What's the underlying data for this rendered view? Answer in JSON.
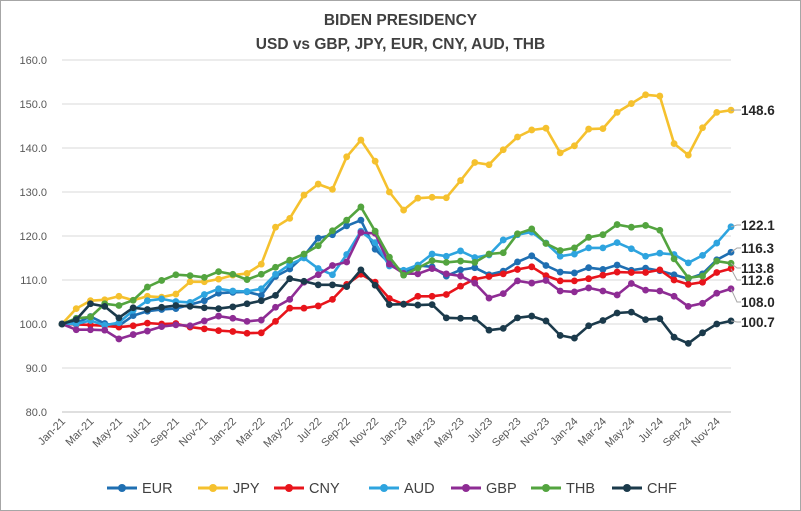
{
  "chart_data": {
    "type": "line",
    "title": "BIDEN PRESIDENCY",
    "subtitle": "USD vs GBP, JPY, EUR, CNY, AUD, THB",
    "ylim": [
      80,
      160
    ],
    "yticks": [
      "80.0",
      "90.0",
      "100.0",
      "110.0",
      "120.0",
      "130.0",
      "140.0",
      "150.0",
      "160.0"
    ],
    "x": [
      "Jan-21",
      "Feb-21",
      "Mar-21",
      "Apr-21",
      "May-21",
      "Jun-21",
      "Jul-21",
      "Aug-21",
      "Sep-21",
      "Oct-21",
      "Nov-21",
      "Dec-21",
      "Jan-22",
      "Feb-22",
      "Mar-22",
      "Apr-22",
      "May-22",
      "Jun-22",
      "Jul-22",
      "Aug-22",
      "Sep-22",
      "Oct-22",
      "Nov-22",
      "Dec-22",
      "Jan-23",
      "Feb-23",
      "Mar-23",
      "Apr-23",
      "May-23",
      "Jun-23",
      "Jul-23",
      "Aug-23",
      "Sep-23",
      "Oct-23",
      "Nov-23",
      "Dec-23",
      "Jan-24",
      "Feb-24",
      "Mar-24",
      "Apr-24",
      "May-24",
      "Jun-24",
      "Jul-24",
      "Aug-24",
      "Sep-24",
      "Oct-24",
      "Nov-24",
      "Dec-24"
    ],
    "xtick_labels": [
      "Jan-21",
      "Mar-21",
      "May-21",
      "Jul-21",
      "Sep-21",
      "Nov-21",
      "Jan-22",
      "Mar-22",
      "May-22",
      "Jul-22",
      "Sep-22",
      "Nov-22",
      "Jan-23",
      "Mar-23",
      "May-23",
      "Jul-23",
      "Sep-23",
      "Nov-23",
      "Jan-24",
      "Mar-24",
      "May-24",
      "Jul-24",
      "Sep-24",
      "Nov-24"
    ],
    "grid": "horizontal",
    "legend": "bottom",
    "series": [
      {
        "name": "EUR",
        "color": "#1f6fb2",
        "end_label": "116.3",
        "values": [
          100.0,
          100.2,
          101.7,
          100.1,
          99.6,
          101.9,
          102.9,
          103.3,
          103.5,
          104.4,
          105.3,
          107.0,
          107.2,
          107.3,
          106.5,
          110.8,
          112.5,
          115.5,
          119.5,
          120.3,
          122.3,
          123.6,
          117.0,
          113.8,
          111.7,
          113.3,
          113.0,
          110.9,
          112.3,
          112.8,
          111.2,
          112.0,
          114.1,
          115.5,
          113.3,
          111.8,
          111.6,
          112.8,
          112.4,
          113.4,
          112.2,
          112.7,
          112.1,
          111.2,
          110.3,
          111.4,
          114.6,
          116.3
        ]
      },
      {
        "name": "JPY",
        "color": "#f5c12e",
        "end_label": "148.6",
        "values": [
          100.0,
          103.5,
          105.3,
          105.5,
          106.3,
          105.4,
          106.3,
          106.1,
          106.8,
          109.6,
          109.6,
          110.2,
          111.1,
          111.5,
          113.6,
          122.0,
          124.0,
          129.3,
          131.8,
          130.6,
          138.0,
          141.8,
          137.0,
          130.0,
          125.9,
          128.6,
          128.8,
          128.7,
          132.6,
          136.7,
          136.2,
          139.6,
          142.5,
          144.1,
          144.5,
          138.9,
          140.5,
          144.3,
          144.4,
          148.1,
          150.1,
          152.1,
          151.8,
          141.0,
          138.4,
          144.6,
          148.1,
          148.6
        ]
      },
      {
        "name": "CNY",
        "color": "#e8141b",
        "end_label": "112.6",
        "values": [
          100.0,
          99.9,
          99.8,
          99.6,
          99.3,
          99.6,
          100.2,
          100.0,
          100.1,
          99.3,
          98.9,
          98.5,
          98.3,
          97.9,
          98.0,
          100.6,
          103.6,
          103.6,
          104.1,
          105.6,
          109.0,
          111.3,
          109.5,
          105.8,
          104.5,
          106.3,
          106.3,
          106.7,
          108.6,
          110.2,
          110.8,
          111.4,
          112.4,
          113.0,
          111.0,
          109.8,
          109.8,
          110.3,
          111.1,
          111.8,
          111.7,
          111.7,
          112.3,
          110.0,
          109.0,
          109.5,
          111.7,
          112.6
        ]
      },
      {
        "name": "AUD",
        "color": "#2ea4df",
        "end_label": "122.1",
        "values": [
          100.0,
          100.0,
          100.8,
          99.7,
          100.3,
          103.1,
          105.3,
          105.7,
          105.1,
          104.9,
          106.7,
          108.0,
          107.5,
          107.4,
          108.0,
          111.3,
          113.5,
          115.0,
          112.6,
          111.2,
          115.8,
          121.1,
          118.5,
          113.2,
          112.2,
          113.4,
          115.9,
          115.4,
          116.6,
          115.1,
          115.7,
          119.1,
          120.3,
          120.9,
          118.4,
          115.4,
          115.9,
          117.3,
          117.3,
          118.5,
          117.1,
          115.4,
          116.1,
          115.8,
          113.9,
          115.6,
          118.4,
          122.1
        ]
      },
      {
        "name": "GBP",
        "color": "#8e2c94",
        "end_label": "108.0",
        "values": [
          100.0,
          98.7,
          98.7,
          98.6,
          96.6,
          97.6,
          98.4,
          99.4,
          99.8,
          99.6,
          100.7,
          101.8,
          101.3,
          100.6,
          100.9,
          103.8,
          105.6,
          109.5,
          111.2,
          113.3,
          114.1,
          120.8,
          120.6,
          113.6,
          111.5,
          111.4,
          112.6,
          111.4,
          110.9,
          109.3,
          105.9,
          106.9,
          109.8,
          109.3,
          109.9,
          107.5,
          107.3,
          108.2,
          107.5,
          106.6,
          109.2,
          107.7,
          107.5,
          106.3,
          104.0,
          104.7,
          107.0,
          108.0
        ]
      },
      {
        "name": "THB",
        "color": "#53a43f",
        "end_label": "113.8",
        "values": [
          100.0,
          101.3,
          101.6,
          104.6,
          104.2,
          105.4,
          108.4,
          109.9,
          111.2,
          111.0,
          110.6,
          111.9,
          111.3,
          110.1,
          111.3,
          112.9,
          114.5,
          115.9,
          117.8,
          121.2,
          123.6,
          126.6,
          121.1,
          115.2,
          111.1,
          112.7,
          114.4,
          114.0,
          114.3,
          114.0,
          115.9,
          116.2,
          120.5,
          121.6,
          118.3,
          116.7,
          117.3,
          119.7,
          120.3,
          122.6,
          122.0,
          122.4,
          121.3,
          114.8,
          110.5,
          110.9,
          114.3,
          113.8
        ]
      },
      {
        "name": "CHF",
        "color": "#1b3a4b",
        "end_label": "100.7",
        "values": [
          100.0,
          101.0,
          104.6,
          104.0,
          101.4,
          103.7,
          103.3,
          103.8,
          104.2,
          104.0,
          103.7,
          103.5,
          103.9,
          104.6,
          105.3,
          106.5,
          110.3,
          109.7,
          108.9,
          108.9,
          108.5,
          112.3,
          108.8,
          104.4,
          104.5,
          104.3,
          104.4,
          101.4,
          101.3,
          101.3,
          98.6,
          99.0,
          101.4,
          101.8,
          100.7,
          97.4,
          96.8,
          99.6,
          100.8,
          102.5,
          102.7,
          101.0,
          101.2,
          97.0,
          95.6,
          98.0,
          100.0,
          100.7
        ]
      }
    ]
  }
}
